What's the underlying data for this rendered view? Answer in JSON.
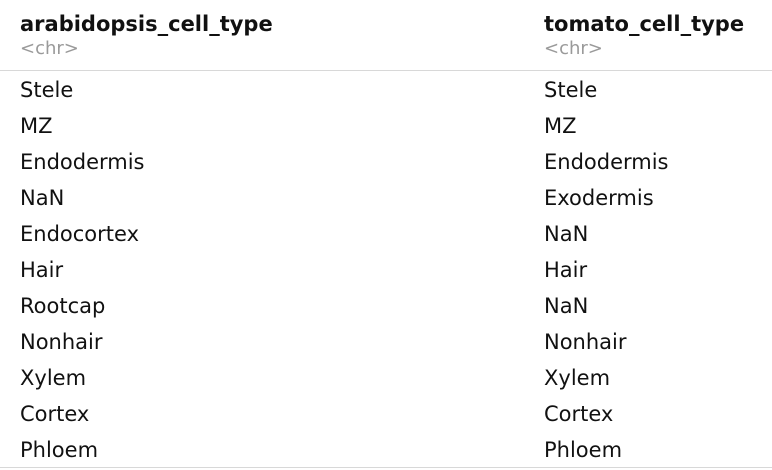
{
  "table": {
    "columns": [
      {
        "name": "arabidopsis_cell_type",
        "type": "<chr>"
      },
      {
        "name": "tomato_cell_type",
        "type": "<chr>"
      }
    ],
    "rows": [
      [
        "Stele",
        "Stele"
      ],
      [
        "MZ",
        "MZ"
      ],
      [
        "Endodermis",
        "Endodermis"
      ],
      [
        "NaN",
        "Exodermis"
      ],
      [
        "Endocortex",
        "NaN"
      ],
      [
        "Hair",
        "Hair"
      ],
      [
        "Rootcap",
        "NaN"
      ],
      [
        "Nonhair",
        "Nonhair"
      ],
      [
        "Xylem",
        "Xylem"
      ],
      [
        "Cortex",
        "Cortex"
      ],
      [
        "Phloem",
        "Phloem"
      ]
    ]
  }
}
